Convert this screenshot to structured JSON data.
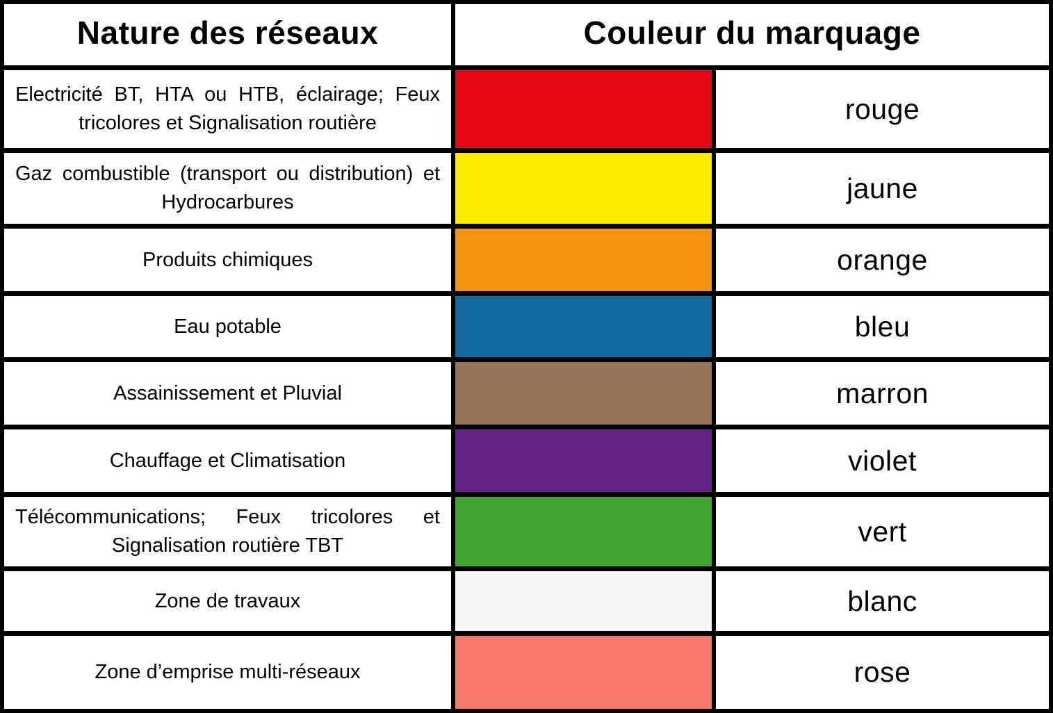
{
  "header": {
    "col1": "Nature des réseaux",
    "col2": "Couleur du marquage"
  },
  "rows": [
    {
      "nature": "Electricité BT, HTA ou HTB, éclairage; Feux tricolores et Signalisation routière",
      "color_hex": "#e30613",
      "color_name": "rouge"
    },
    {
      "nature": "Gaz combustible (transport ou distribution) et Hydrocarbures",
      "color_hex": "#ffed00",
      "color_name": "jaune"
    },
    {
      "nature": "Produits chimiques",
      "color_hex": "#f39314",
      "color_name": "orange"
    },
    {
      "nature": "Eau potable",
      "color_hex": "#12699b",
      "color_name": "bleu"
    },
    {
      "nature": "Assainissement et Pluvial",
      "color_hex": "#957155",
      "color_name": "marron"
    },
    {
      "nature": "Chauffage et Climatisation",
      "color_hex": "#652386",
      "color_name": "violet"
    },
    {
      "nature": "Télécommunications; Feux tricolores et Signalisation routière TBT",
      "color_hex": "#41a533",
      "color_name": "vert"
    },
    {
      "nature": "Zone de travaux",
      "color_hex": "#f8f8f8",
      "color_name": "blanc"
    },
    {
      "nature": "Zone d’emprise multi-réseaux",
      "color_hex": "#f6786f",
      "color_name": "rose"
    }
  ]
}
